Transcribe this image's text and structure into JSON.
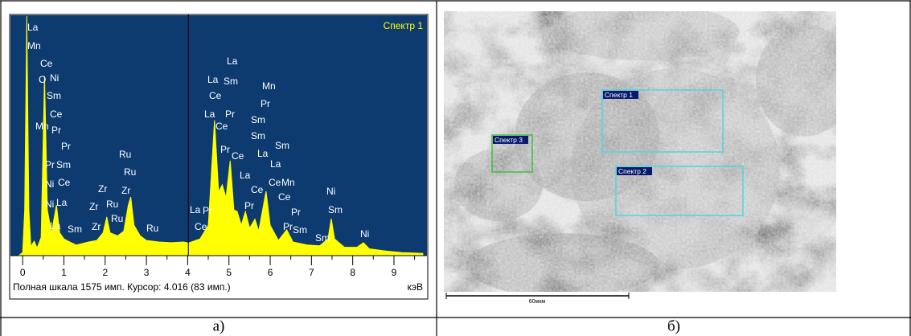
{
  "chart_data": {
    "type": "area",
    "title": "Спектр 1",
    "x": [
      -0.1,
      0.0,
      0.05,
      0.1,
      0.15,
      0.2,
      0.28,
      0.35,
      0.45,
      0.53,
      0.6,
      0.7,
      0.82,
      0.9,
      1.0,
      1.1,
      1.3,
      1.6,
      1.8,
      1.95,
      2.04,
      2.12,
      2.3,
      2.45,
      2.56,
      2.62,
      2.7,
      2.85,
      3.0,
      3.3,
      3.6,
      3.9,
      4.016,
      4.3,
      4.5,
      4.65,
      4.75,
      4.84,
      4.93,
      5.03,
      5.12,
      5.2,
      5.3,
      5.4,
      5.5,
      5.63,
      5.72,
      5.9,
      6.0,
      6.2,
      6.4,
      6.55,
      6.9,
      7.2,
      7.4,
      7.48,
      7.56,
      7.8,
      8.1,
      8.26,
      8.4,
      8.8,
      9.2,
      9.7
    ],
    "values": [
      0,
      20,
      300,
      1575,
      300,
      60,
      95,
      50,
      120,
      1180,
      300,
      150,
      333,
      150,
      110,
      95,
      70,
      90,
      100,
      150,
      254,
      150,
      130,
      160,
      330,
      386,
      200,
      130,
      100,
      90,
      85,
      90,
      83,
      110,
      200,
      890,
      420,
      466,
      380,
      624,
      300,
      290,
      200,
      290,
      180,
      240,
      160,
      423,
      200,
      100,
      170,
      90,
      70,
      65,
      110,
      243,
      110,
      55,
      55,
      85,
      45,
      30,
      20,
      15
    ],
    "color": "#ffff00",
    "xlim": [
      -0.12,
      9.78
    ],
    "xticks": [
      0,
      1,
      2,
      3,
      4,
      5,
      6,
      7,
      8,
      9
    ],
    "ylim": [
      0,
      1575
    ],
    "cursor": 4.016,
    "status": "Полная шкала 1575 имп. Курсор: 4.016 (83 имп.)",
    "x_unit": "кэВ",
    "peak_labels": [
      "La",
      "Mn",
      "Ce",
      "O",
      "Ni",
      "Sm",
      "Ce",
      "Mn",
      "Pr",
      "Pr",
      "Pr",
      "Sm",
      "Ni",
      "Ce",
      "Ni",
      "La",
      "La",
      "Sm",
      "Zr",
      "Ru",
      "Zr",
      "Zr",
      "Zr",
      "Ru",
      "Ru",
      "Ru",
      "Ru",
      "La",
      "La",
      "Sm",
      "Ce",
      "La",
      "Pr",
      "Ce",
      "Mn",
      "Pr",
      "Sm",
      "Sm",
      "Sm",
      "La",
      "Pr",
      "Ce",
      "La",
      "La",
      "Ce",
      "Mn",
      "Ce",
      "Ce",
      "Pr",
      "Pr",
      "Pr",
      "Sm",
      "Sm",
      "Ni",
      "Sm",
      "Ni",
      "La",
      "Pr",
      "Ce"
    ]
  },
  "sem_image": {
    "regions": [
      "Спектр 1",
      "Спектр 2",
      "Спектр 3"
    ],
    "scale_bar": "60мкм"
  },
  "captions": [
    "а)",
    "б)"
  ]
}
